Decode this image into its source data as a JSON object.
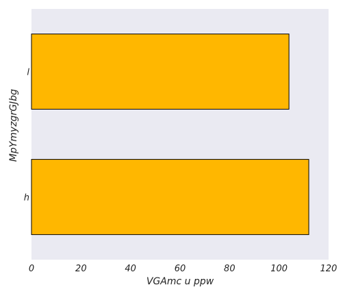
{
  "chart_data": {
    "type": "bar",
    "orientation": "horizontal",
    "categories": [
      "l",
      "h"
    ],
    "values": [
      104,
      112
    ],
    "xlabel": "VGAmc u ppw",
    "ylabel": "MpYmyzgrGJbg",
    "xlim": [
      0,
      120
    ],
    "xticks": [
      0,
      20,
      40,
      60,
      80,
      100,
      120
    ],
    "grid": false,
    "colors": {
      "bar": "#FFB700",
      "bar_edge": "#000000",
      "background": "#EAEAF2"
    }
  }
}
